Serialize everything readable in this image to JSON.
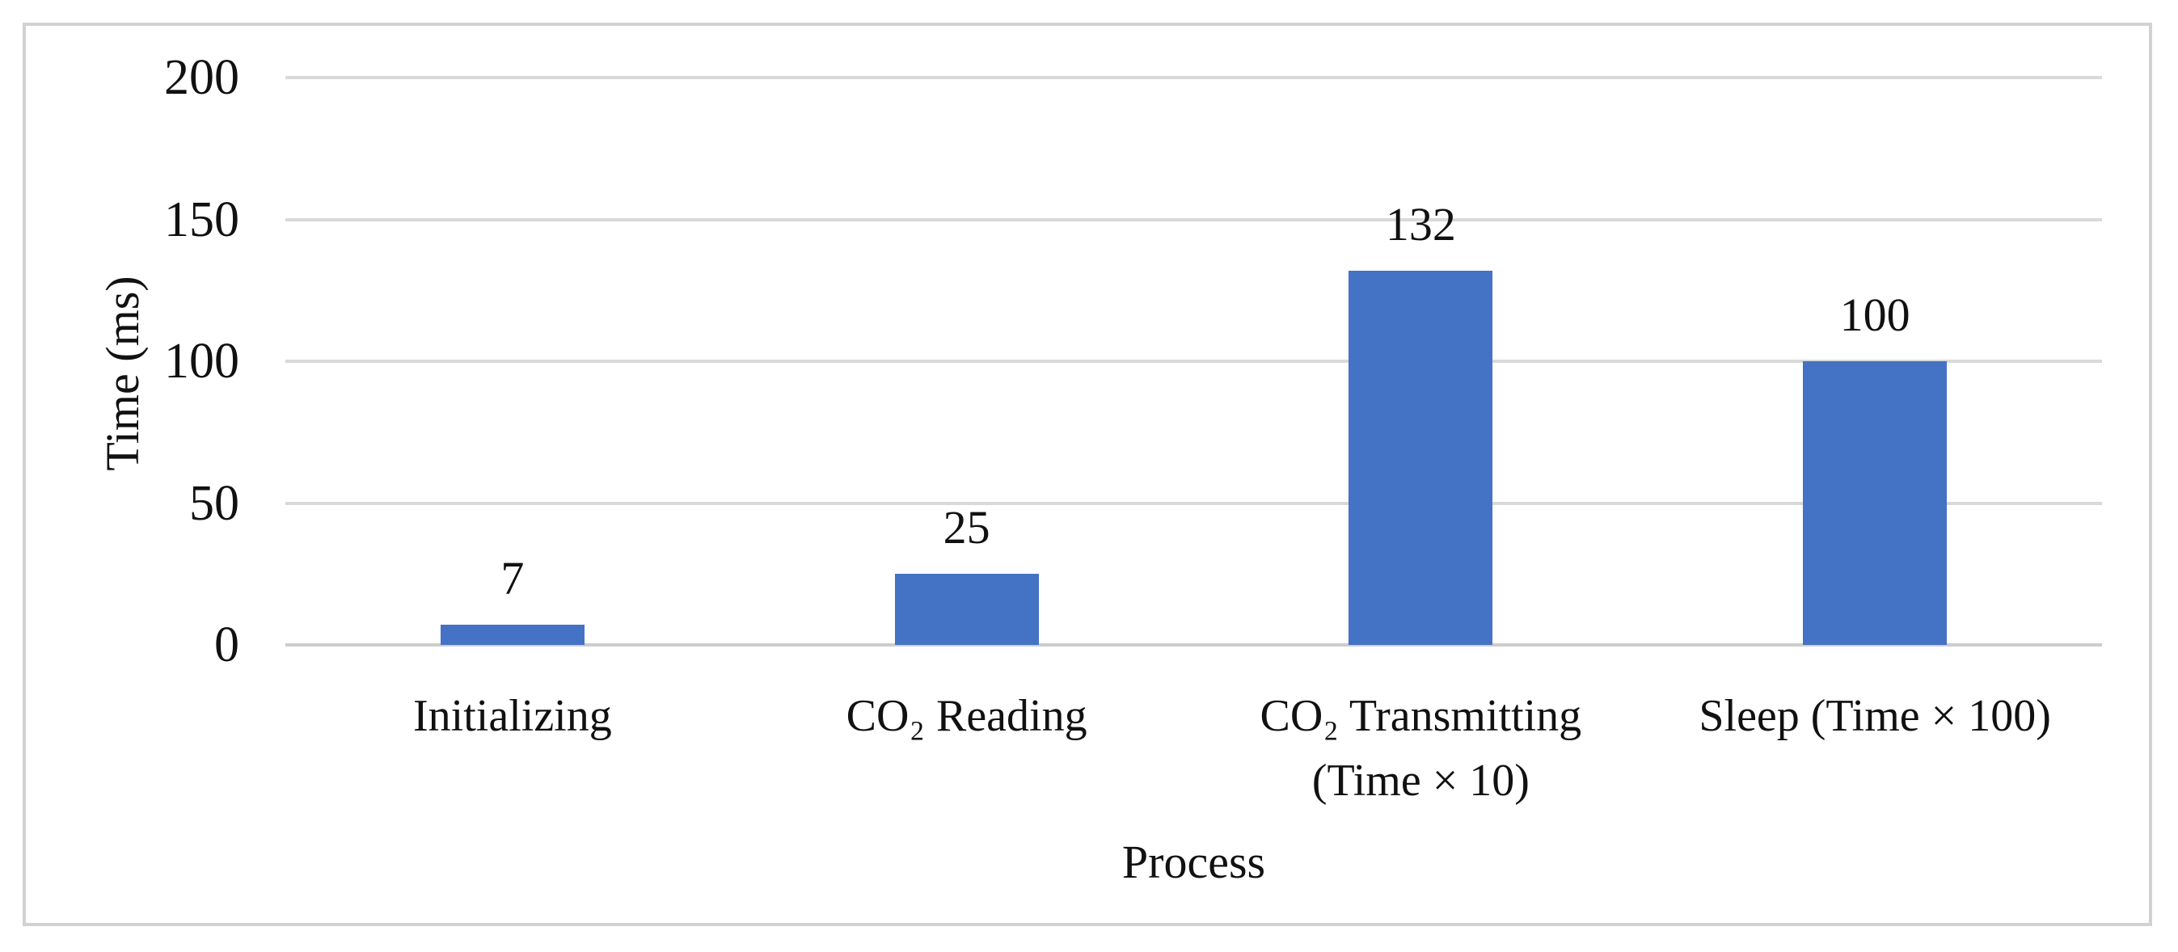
{
  "figure": {
    "background": "#ffffff",
    "border_color": "#d2d2d2"
  },
  "chart_data": {
    "type": "bar",
    "categories": [
      "Initializing",
      "CO₂ Reading",
      "CO₂ Transmitting\n(Time × 10)",
      "Sleep (Time × 100)"
    ],
    "values": [
      7,
      25,
      132,
      100
    ],
    "xlabel": "Process",
    "ylabel": "Time (ms)",
    "ylim": [
      0,
      200
    ],
    "yticks": [
      0,
      50,
      100,
      150,
      200
    ],
    "grid": "horizontal",
    "legend": "none",
    "bar_color": "#4472C4",
    "gridline_color": "#d9d9d9",
    "text_color": "#111111"
  }
}
